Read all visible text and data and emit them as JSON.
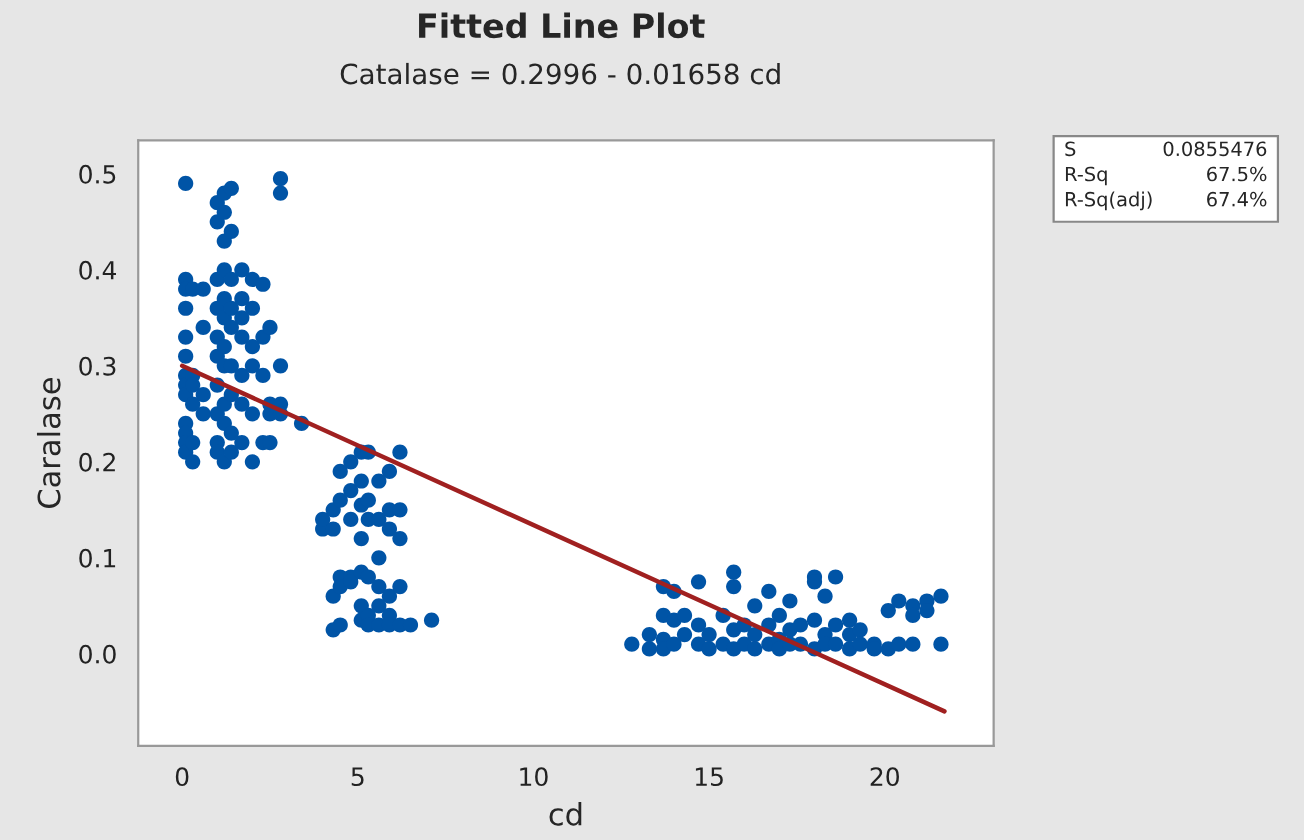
{
  "chart_data": {
    "type": "scatter",
    "title": "Fitted Line Plot",
    "subtitle": "Catalase = 0.2996 - 0.01658 cd",
    "xlabel": "cd",
    "ylabel": "Caralase",
    "xlim": [
      -1.25,
      23.1
    ],
    "ylim": [
      -0.096,
      0.535
    ],
    "xticks": [
      0,
      5,
      10,
      15,
      20
    ],
    "yticks": [
      {
        "value": 0,
        "label": "0.0"
      },
      0.1,
      0.2,
      0.3,
      0.4,
      0.5
    ],
    "grid": false,
    "legend": false,
    "marker": "circle",
    "annotations": [
      "S",
      "0.0855476",
      "R-Sq",
      "67.5%",
      "R-Sq(adj)",
      "67.4%"
    ],
    "series": [
      {
        "color": "#0054a6",
        "x": [
          0.1,
          0.1,
          0.1,
          0.1,
          0.1,
          0.1,
          0.1,
          0.1,
          0.1,
          0.1,
          0.1,
          0.1,
          0.1,
          0.3,
          0.3,
          0.3,
          0.3,
          0.3,
          0.3,
          0.6,
          0.6,
          0.6,
          0.6,
          1.0,
          1.0,
          1.0,
          1.0,
          1.0,
          1.0,
          1.0,
          1.0,
          1.0,
          1.0,
          1.2,
          1.2,
          1.2,
          1.2,
          1.2,
          1.2,
          1.2,
          1.2,
          1.2,
          1.2,
          1.2,
          1.4,
          1.4,
          1.4,
          1.4,
          1.4,
          1.4,
          1.4,
          1.4,
          1.4,
          1.7,
          1.7,
          1.7,
          1.7,
          1.7,
          1.7,
          1.7,
          2.0,
          2.0,
          2.0,
          2.0,
          2.0,
          2.0,
          2.3,
          2.3,
          2.3,
          2.3,
          2.5,
          2.5,
          2.5,
          2.5,
          2.8,
          2.8,
          2.8,
          2.8,
          2.8,
          3.4,
          4.0,
          4.0,
          4.3,
          4.3,
          4.3,
          4.3,
          4.5,
          4.5,
          4.5,
          4.5,
          4.5,
          4.8,
          4.8,
          4.8,
          4.8,
          4.8,
          5.1,
          5.1,
          5.1,
          5.1,
          5.1,
          5.1,
          5.1,
          5.3,
          5.3,
          5.3,
          5.3,
          5.3,
          5.3,
          5.6,
          5.6,
          5.6,
          5.6,
          5.6,
          5.6,
          5.9,
          5.9,
          5.9,
          5.9,
          5.9,
          5.9,
          6.2,
          6.2,
          6.2,
          6.2,
          6.2,
          6.5,
          7.1,
          12.8,
          13.3,
          13.3,
          13.7,
          13.7,
          13.7,
          13.7,
          14.0,
          14.0,
          14.0,
          14.3,
          14.3,
          14.7,
          14.7,
          14.7,
          15.0,
          15.0,
          15.4,
          15.4,
          15.7,
          15.7,
          15.7,
          15.7,
          16.0,
          16.0,
          16.3,
          16.3,
          16.3,
          16.7,
          16.7,
          16.7,
          17.0,
          17.0,
          17.0,
          17.3,
          17.3,
          17.3,
          17.6,
          17.6,
          18.0,
          18.0,
          18.0,
          18.0,
          18.3,
          18.3,
          18.3,
          18.6,
          18.6,
          18.6,
          19.0,
          19.0,
          19.0,
          19.3,
          19.3,
          19.7,
          19.7,
          20.1,
          20.1,
          20.4,
          20.4,
          20.8,
          20.8,
          20.8,
          21.2,
          21.2,
          21.6,
          21.6
        ],
        "values": [
          0.49,
          0.39,
          0.38,
          0.36,
          0.33,
          0.31,
          0.29,
          0.28,
          0.27,
          0.24,
          0.23,
          0.22,
          0.21,
          0.38,
          0.29,
          0.28,
          0.26,
          0.22,
          0.2,
          0.38,
          0.34,
          0.27,
          0.25,
          0.47,
          0.45,
          0.39,
          0.36,
          0.33,
          0.31,
          0.28,
          0.25,
          0.22,
          0.21,
          0.48,
          0.46,
          0.43,
          0.4,
          0.37,
          0.35,
          0.32,
          0.3,
          0.26,
          0.24,
          0.2,
          0.485,
          0.44,
          0.39,
          0.36,
          0.34,
          0.3,
          0.27,
          0.23,
          0.21,
          0.4,
          0.37,
          0.35,
          0.33,
          0.29,
          0.26,
          0.22,
          0.39,
          0.36,
          0.32,
          0.3,
          0.25,
          0.2,
          0.385,
          0.33,
          0.29,
          0.22,
          0.34,
          0.26,
          0.25,
          0.22,
          0.495,
          0.48,
          0.3,
          0.26,
          0.25,
          0.24,
          0.13,
          0.14,
          0.15,
          0.13,
          0.06,
          0.025,
          0.19,
          0.16,
          0.08,
          0.07,
          0.03,
          0.2,
          0.17,
          0.14,
          0.08,
          0.075,
          0.21,
          0.18,
          0.155,
          0.12,
          0.085,
          0.05,
          0.035,
          0.21,
          0.16,
          0.14,
          0.08,
          0.04,
          0.03,
          0.18,
          0.14,
          0.1,
          0.07,
          0.05,
          0.03,
          0.19,
          0.15,
          0.13,
          0.06,
          0.04,
          0.03,
          0.21,
          0.15,
          0.12,
          0.07,
          0.03,
          0.03,
          0.035,
          0.01,
          0.02,
          0.005,
          0.04,
          0.07,
          0.015,
          0.005,
          0.065,
          0.035,
          0.01,
          0.04,
          0.02,
          0.075,
          0.03,
          0.01,
          0.02,
          0.005,
          0.04,
          0.01,
          0.085,
          0.07,
          0.025,
          0.005,
          0.03,
          0.01,
          0.05,
          0.02,
          0.005,
          0.065,
          0.03,
          0.01,
          0.04,
          0.015,
          0.005,
          0.055,
          0.025,
          0.01,
          0.03,
          0.01,
          0.08,
          0.075,
          0.035,
          0.005,
          0.06,
          0.02,
          0.01,
          0.08,
          0.03,
          0.01,
          0.035,
          0.02,
          0.005,
          0.025,
          0.01,
          0.01,
          0.005,
          0.045,
          0.005,
          0.055,
          0.01,
          0.05,
          0.04,
          0.01,
          0.055,
          0.045,
          0.06,
          0.01
        ]
      },
      {
        "type": "line",
        "color": "#a02020",
        "line_style": "solid",
        "marker": "none",
        "x": [
          0,
          21.7
        ],
        "values": [
          0.3,
          -0.06
        ]
      }
    ]
  }
}
